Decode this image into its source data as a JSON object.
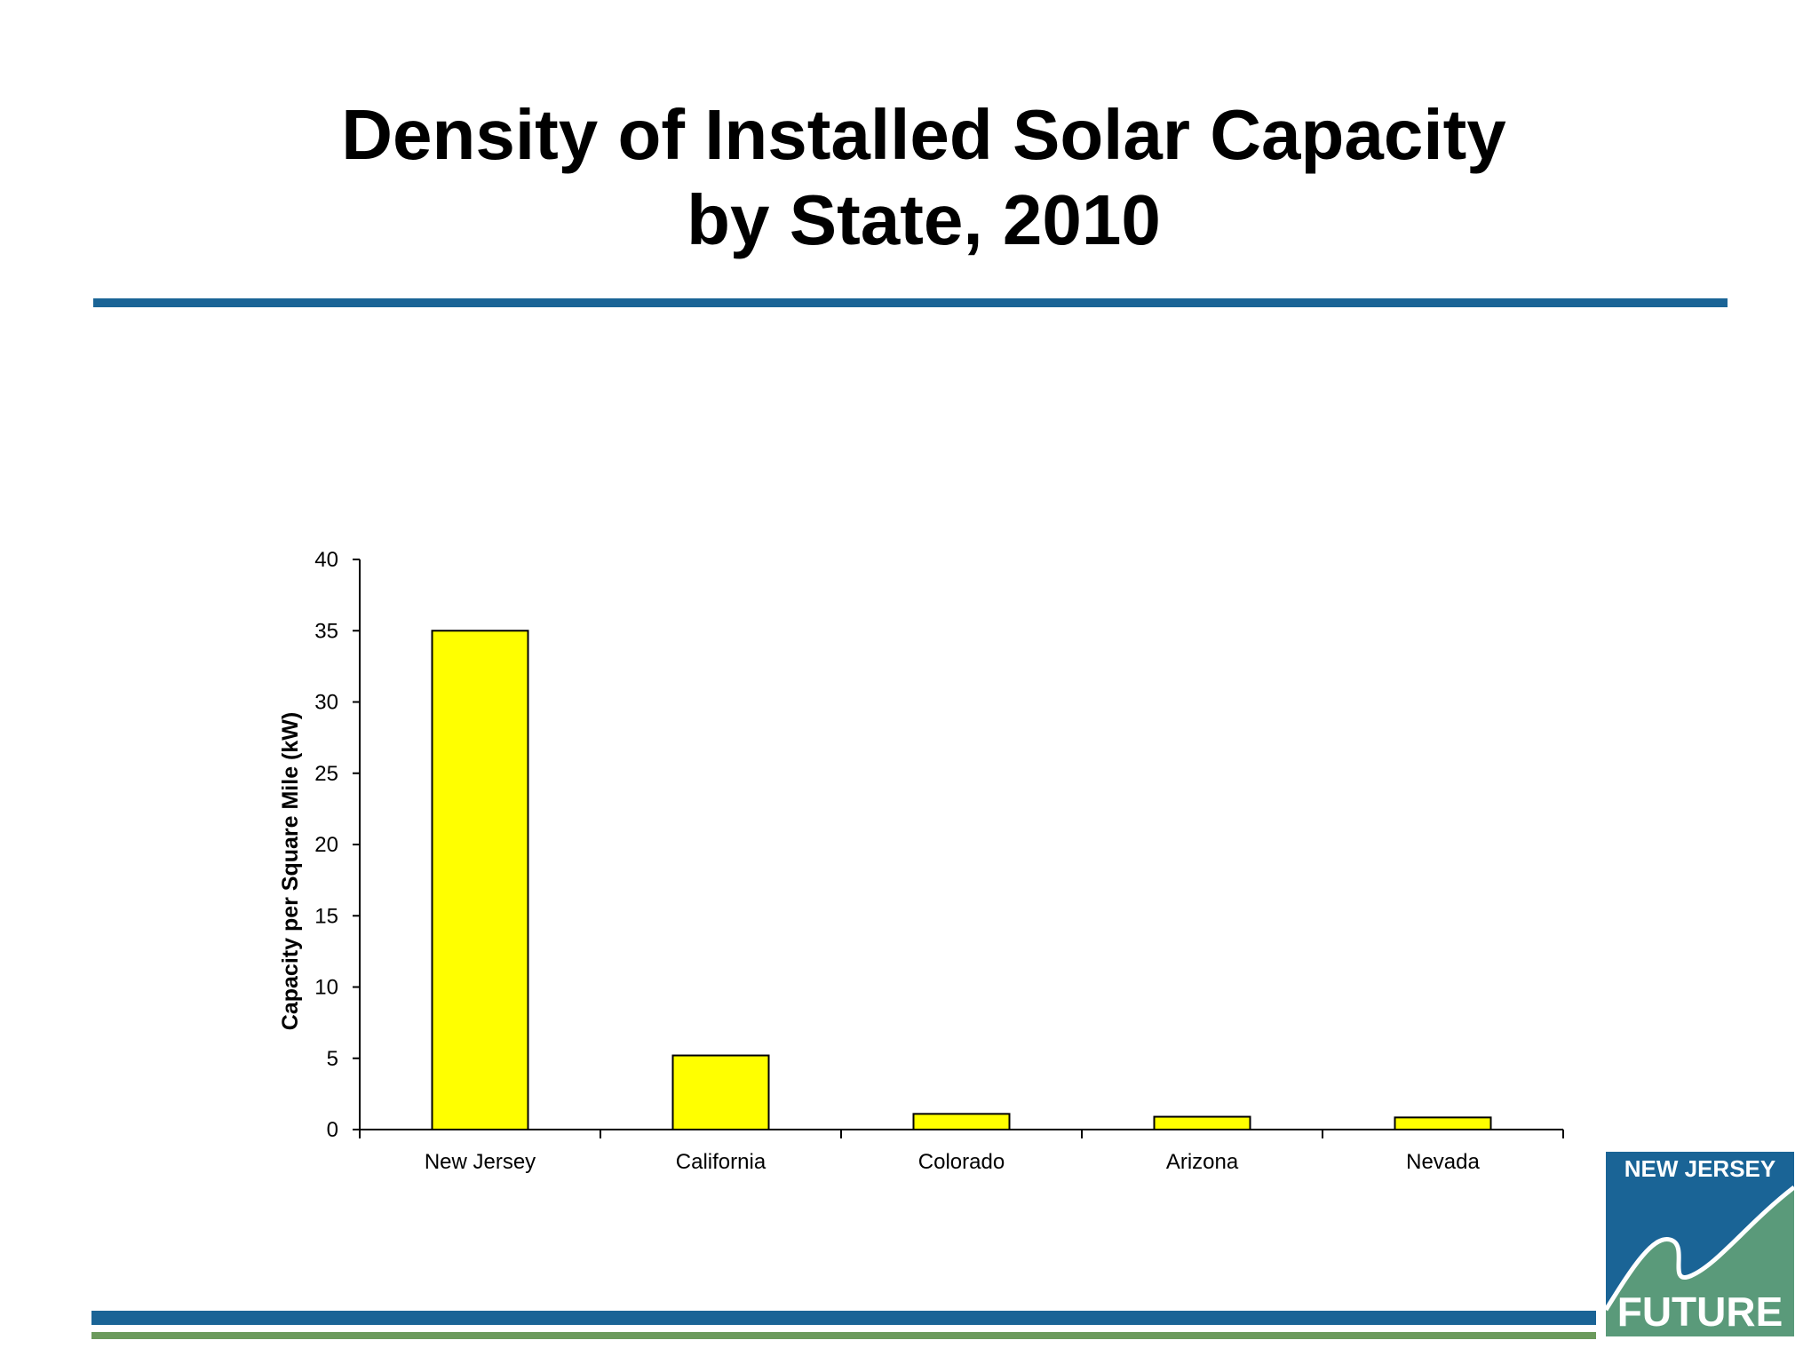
{
  "slide": {
    "title_line1": "Density of Installed Solar Capacity",
    "title_line2": "by State, 2010"
  },
  "logo": {
    "text_top": "NEW JERSEY",
    "text_bottom": "FUTURE",
    "colors": {
      "blue": "#1a6496",
      "green": "#5a9a7a"
    }
  },
  "colors": {
    "bar_fill": "#ffff00",
    "bar_stroke": "#000000",
    "rule_blue": "#1a6496",
    "rule_green": "#6b9a5c"
  },
  "chart_data": {
    "type": "bar",
    "categories": [
      "New Jersey",
      "California",
      "Colorado",
      "Arizona",
      "Nevada"
    ],
    "values": [
      35,
      5.2,
      1.1,
      0.9,
      0.85
    ],
    "title": "",
    "xlabel": "",
    "ylabel": "Capacity per Square Mile (kW)",
    "ylim": [
      0,
      40
    ],
    "yticks": [
      0,
      5,
      10,
      15,
      20,
      25,
      30,
      35,
      40
    ],
    "grid": false,
    "legend": "none"
  }
}
